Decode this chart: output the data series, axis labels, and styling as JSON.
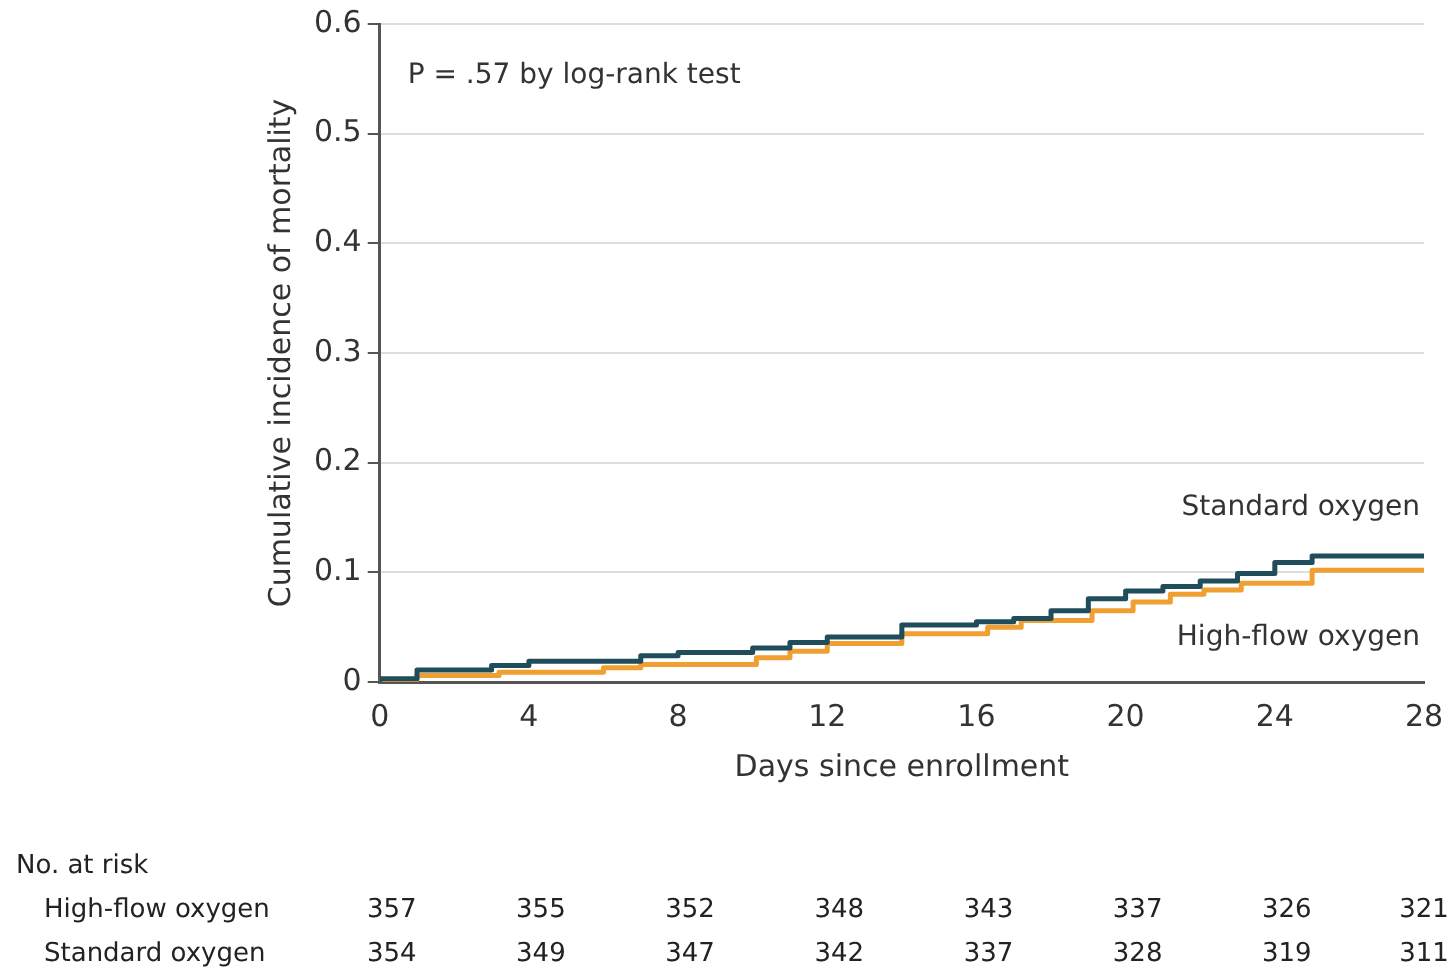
{
  "chart_data": {
    "type": "step",
    "xlabel": "Days since enrollment",
    "ylabel": "Cumulative incidence of mortality",
    "xlim": [
      0,
      28
    ],
    "xticks": [
      0,
      4,
      8,
      12,
      16,
      20,
      24,
      28
    ],
    "ylim": [
      0,
      0.6
    ],
    "yticks": [
      0,
      0.1,
      0.2,
      0.3,
      0.4,
      0.5,
      0.6
    ],
    "grid": "y",
    "legend": false,
    "marker": "none",
    "series": [
      {
        "name": "Standard oxygen",
        "color": "#1f4d5c",
        "x": [
          0,
          1,
          3,
          4,
          7,
          8,
          10,
          11,
          12,
          14,
          16,
          17,
          18,
          19,
          20,
          21,
          22,
          23,
          24,
          25,
          26,
          28
        ],
        "values": [
          0,
          0.003,
          0.011,
          0.015,
          0.019,
          0.024,
          0.027,
          0.031,
          0.036,
          0.041,
          0.052,
          0.055,
          0.058,
          0.065,
          0.076,
          0.083,
          0.087,
          0.092,
          0.099,
          0.109,
          0.115,
          0.115
        ]
      },
      {
        "name": "High-flow oxygen",
        "color": "#f0a030",
        "x": [
          0,
          1,
          3.2,
          6,
          7,
          10.1,
          11,
          12,
          14,
          16.3,
          17.2,
          19.1,
          20.2,
          21.2,
          22.1,
          23.1,
          25,
          26.1,
          28
        ],
        "values": [
          0,
          0.002,
          0.006,
          0.009,
          0.013,
          0.016,
          0.022,
          0.028,
          0.035,
          0.044,
          0.05,
          0.056,
          0.065,
          0.073,
          0.08,
          0.084,
          0.09,
          0.102,
          0.102
        ]
      }
    ],
    "annotations": [
      "P = .57 by log-rank test",
      "No. at risk",
      "High-flow oxygen",
      "Standard oxygen",
      "357",
      "355",
      "352",
      "348",
      "343",
      "337",
      "326",
      "321",
      "354",
      "349",
      "347",
      "342",
      "337",
      "328",
      "319",
      "311"
    ]
  }
}
